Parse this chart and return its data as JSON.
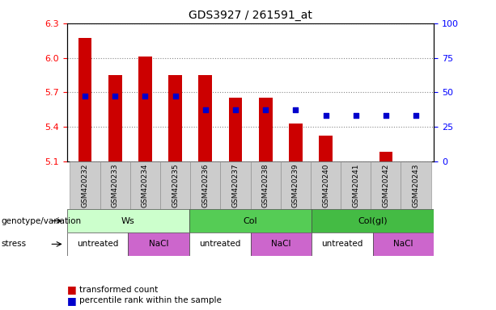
{
  "title": "GDS3927 / 261591_at",
  "samples": [
    "GSM420232",
    "GSM420233",
    "GSM420234",
    "GSM420235",
    "GSM420236",
    "GSM420237",
    "GSM420238",
    "GSM420239",
    "GSM420240",
    "GSM420241",
    "GSM420242",
    "GSM420243"
  ],
  "bar_values": [
    6.17,
    5.85,
    6.01,
    5.85,
    5.85,
    5.65,
    5.65,
    5.43,
    5.32,
    5.1,
    5.18,
    5.1
  ],
  "bar_base": 5.1,
  "dot_percentile": [
    47,
    47,
    47,
    47,
    37,
    37,
    37,
    37,
    33,
    33,
    33,
    33
  ],
  "ylim_left": [
    5.1,
    6.3
  ],
  "ylim_right": [
    0,
    100
  ],
  "yticks_left": [
    5.1,
    5.4,
    5.7,
    6.0,
    6.3
  ],
  "yticks_right": [
    0,
    25,
    50,
    75,
    100
  ],
  "bar_color": "#cc0000",
  "dot_color": "#0000cc",
  "genotype_groups": [
    {
      "label": "Ws",
      "start": 0,
      "end": 4,
      "color": "#ccffcc"
    },
    {
      "label": "Col",
      "start": 4,
      "end": 8,
      "color": "#55cc55"
    },
    {
      "label": "Col(gl)",
      "start": 8,
      "end": 12,
      "color": "#44bb44"
    }
  ],
  "stress_groups": [
    {
      "label": "untreated",
      "start": 0,
      "end": 2,
      "color": "#ffffff"
    },
    {
      "label": "NaCl",
      "start": 2,
      "end": 4,
      "color": "#cc66cc"
    },
    {
      "label": "untreated",
      "start": 4,
      "end": 6,
      "color": "#ffffff"
    },
    {
      "label": "NaCl",
      "start": 6,
      "end": 8,
      "color": "#cc66cc"
    },
    {
      "label": "untreated",
      "start": 8,
      "end": 10,
      "color": "#ffffff"
    },
    {
      "label": "NaCl",
      "start": 10,
      "end": 12,
      "color": "#cc66cc"
    }
  ],
  "genotype_label": "genotype/variation",
  "stress_label": "stress",
  "legend_bar": "transformed count",
  "legend_dot": "percentile rank within the sample",
  "sample_bg_color": "#cccccc",
  "grid_color": "#888888",
  "dot_color_right": "blue"
}
